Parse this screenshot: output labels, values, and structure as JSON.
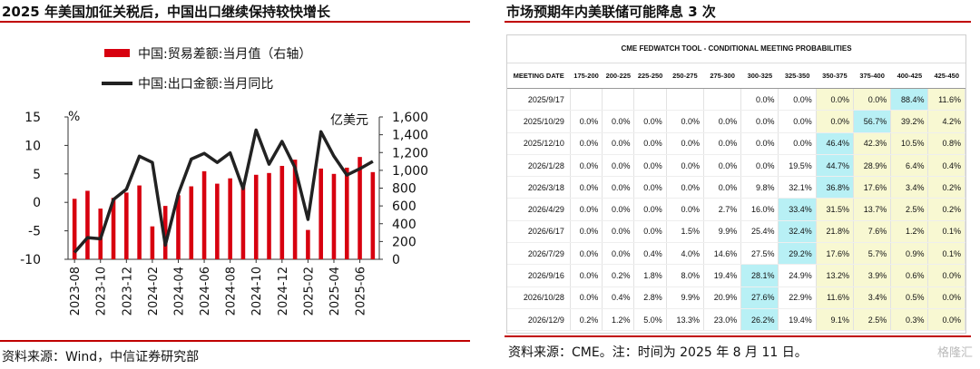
{
  "left_panel": {
    "title": "2025 年美国加征关税后，中国出口继续保持较快增长",
    "source": "资料来源：Wind，中信证券研究部"
  },
  "right_panel": {
    "title": "市场预期年内美联储可能降息 3 次",
    "source": "资料来源：CME。注：时间为 2025 年 8 月 11 日。",
    "watermark": "格隆汇"
  },
  "chart_data": [
    {
      "type": "bar+line",
      "legend": [
        "中国:贸易差额:当月值（右轴）",
        "中国:出口金额:当月同比"
      ],
      "left_axis_unit": "%",
      "right_axis_unit": "亿美元",
      "ylim_left": [
        -10,
        15
      ],
      "yticks_left": [
        15,
        10,
        5,
        0,
        -5,
        -10
      ],
      "ylim_right": [
        0,
        1600
      ],
      "yticks_right": [
        "1,600",
        "1,400",
        "1,200",
        "1,000",
        "800",
        "600",
        "400",
        "200",
        "0"
      ],
      "x_ticks": [
        "2023-08",
        "2023-10",
        "2023-12",
        "2024-02",
        "2024-04",
        "2024-06",
        "2024-08",
        "2024-10",
        "2024-12",
        "2025-02",
        "2025-04",
        "2025-06"
      ],
      "months": [
        "2023-08",
        "2023-09",
        "2023-10",
        "2023-11",
        "2023-12",
        "2024-01",
        "2024-02",
        "2024-03",
        "2024-04",
        "2024-05",
        "2024-06",
        "2024-07",
        "2024-08",
        "2024-09",
        "2024-10",
        "2024-11",
        "2024-12",
        "2025-01",
        "2025-02",
        "2025-03",
        "2025-04",
        "2025-05",
        "2025-06",
        "2025-07"
      ],
      "series": [
        {
          "name": "中国:贸易差额:当月值（右轴）",
          "kind": "bar",
          "axis": "right",
          "color": "#d7000f",
          "values": [
            680,
            770,
            570,
            690,
            750,
            830,
            370,
            600,
            720,
            820,
            990,
            850,
            910,
            820,
            950,
            970,
            1050,
            1120,
            330,
            1020,
            960,
            1030,
            1150,
            980
          ]
        },
        {
          "name": "中国:出口金额:当月同比",
          "kind": "line",
          "axis": "left",
          "color": "#222222",
          "values": [
            -8.8,
            -6.2,
            -6.4,
            0.5,
            2.3,
            8.1,
            7.0,
            -7.5,
            1.5,
            7.6,
            8.6,
            7.0,
            8.7,
            2.4,
            12.7,
            6.7,
            10.7,
            6.1,
            -3.0,
            12.4,
            8.1,
            4.8,
            5.9,
            7.2
          ]
        }
      ]
    },
    {
      "type": "table",
      "title": "CME FEDWATCH TOOL - CONDITIONAL MEETING PROBABILITIES",
      "columns": [
        "MEETING DATE",
        "175-200",
        "200-225",
        "225-250",
        "250-275",
        "275-300",
        "300-325",
        "325-350",
        "350-375",
        "375-400",
        "400-425",
        "425-450"
      ],
      "rows": [
        [
          "2025/9/17",
          "",
          "",
          "",
          "",
          "",
          "0.0%",
          "0.0%",
          "0.0%",
          "0.0%",
          "88.4%",
          "11.6%"
        ],
        [
          "2025/10/29",
          "0.0%",
          "0.0%",
          "0.0%",
          "0.0%",
          "0.0%",
          "0.0%",
          "0.0%",
          "0.0%",
          "56.7%",
          "39.2%",
          "4.2%"
        ],
        [
          "2025/12/10",
          "0.0%",
          "0.0%",
          "0.0%",
          "0.0%",
          "0.0%",
          "0.0%",
          "0.0%",
          "46.4%",
          "42.3%",
          "10.5%",
          "0.8%"
        ],
        [
          "2026/1/28",
          "0.0%",
          "0.0%",
          "0.0%",
          "0.0%",
          "0.0%",
          "0.0%",
          "19.5%",
          "44.7%",
          "28.9%",
          "6.4%",
          "0.4%"
        ],
        [
          "2026/3/18",
          "0.0%",
          "0.0%",
          "0.0%",
          "0.0%",
          "0.0%",
          "9.8%",
          "32.1%",
          "36.8%",
          "17.6%",
          "3.4%",
          "0.2%"
        ],
        [
          "2026/4/29",
          "0.0%",
          "0.0%",
          "0.0%",
          "0.0%",
          "2.7%",
          "16.0%",
          "33.4%",
          "31.5%",
          "13.7%",
          "2.5%",
          "0.2%"
        ],
        [
          "2026/6/17",
          "0.0%",
          "0.0%",
          "0.0%",
          "1.5%",
          "9.9%",
          "25.4%",
          "32.4%",
          "21.8%",
          "7.6%",
          "1.2%",
          "0.1%"
        ],
        [
          "2026/7/29",
          "0.0%",
          "0.0%",
          "0.4%",
          "4.0%",
          "14.6%",
          "27.5%",
          "29.2%",
          "17.6%",
          "5.7%",
          "0.9%",
          "0.1%"
        ],
        [
          "2026/9/16",
          "0.0%",
          "0.2%",
          "1.8%",
          "8.0%",
          "19.4%",
          "28.1%",
          "24.9%",
          "13.2%",
          "3.9%",
          "0.6%",
          "0.0%"
        ],
        [
          "2026/10/28",
          "0.0%",
          "0.4%",
          "2.8%",
          "9.9%",
          "20.9%",
          "27.6%",
          "22.9%",
          "11.6%",
          "3.4%",
          "0.5%",
          "0.0%"
        ],
        [
          "2026/12/9",
          "0.2%",
          "1.2%",
          "5.0%",
          "13.3%",
          "23.0%",
          "26.2%",
          "19.4%",
          "9.1%",
          "2.5%",
          "0.3%",
          "0.0%"
        ]
      ],
      "highlight_color": "#b8f0f5",
      "highlight_cells": [
        [
          0,
          10
        ],
        [
          1,
          9
        ],
        [
          2,
          8
        ],
        [
          3,
          8
        ],
        [
          4,
          8
        ],
        [
          5,
          7
        ],
        [
          6,
          7
        ],
        [
          7,
          7
        ],
        [
          8,
          6
        ],
        [
          9,
          6
        ],
        [
          10,
          6
        ]
      ],
      "shaded_color": "#f8f8d2"
    }
  ]
}
